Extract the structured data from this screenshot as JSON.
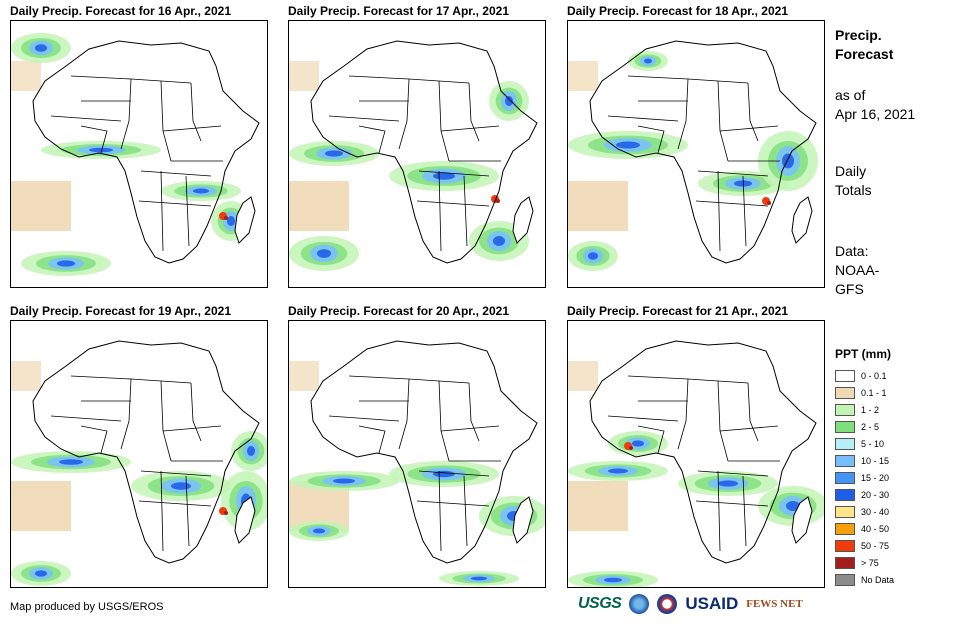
{
  "panels": [
    {
      "title": "Daily Precip. Forecast for 16 Apr., 2021"
    },
    {
      "title": "Daily Precip. Forecast for 17 Apr., 2021"
    },
    {
      "title": "Daily Precip. Forecast for 18 Apr., 2021"
    },
    {
      "title": "Daily Precip. Forecast for 19 Apr., 2021"
    },
    {
      "title": "Daily Precip. Forecast for 20 Apr., 2021"
    },
    {
      "title": "Daily Precip. Forecast for 21 Apr., 2021"
    }
  ],
  "info": {
    "heading_line1": "Precip.",
    "heading_line2": "Forecast",
    "asof_line1": "as of",
    "asof_line2": "Apr 16, 2021",
    "totals_line1": "Daily",
    "totals_line2": "Totals",
    "data_line1": "Data:",
    "data_line2": "NOAA-",
    "data_line3": "GFS"
  },
  "legend": {
    "title": "PPT (mm)",
    "items": [
      {
        "label": "0 - 0.1",
        "color": "#ffffff"
      },
      {
        "label": "0.1 - 1",
        "color": "#efd8b4"
      },
      {
        "label": "1 - 2",
        "color": "#c2f5b4"
      },
      {
        "label": "2 - 5",
        "color": "#7de07a"
      },
      {
        "label": "5 - 10",
        "color": "#b4f0f5"
      },
      {
        "label": "10 - 15",
        "color": "#78beff"
      },
      {
        "label": "15 - 20",
        "color": "#4196f5"
      },
      {
        "label": "20 - 30",
        "color": "#1f5ee8"
      },
      {
        "label": "30 - 40",
        "color": "#fde68a"
      },
      {
        "label": "40 - 50",
        "color": "#f5a00a"
      },
      {
        "label": "50 - 75",
        "color": "#f03c0a"
      },
      {
        "label": "> 75",
        "color": "#a51e1e"
      },
      {
        "label": "No Data",
        "color": "#8c8c8c"
      }
    ]
  },
  "credit": "Map produced by USGS/EROS",
  "logos": {
    "usgs": "USGS",
    "usaid": "USAID",
    "fews": "FEWS NET"
  }
}
